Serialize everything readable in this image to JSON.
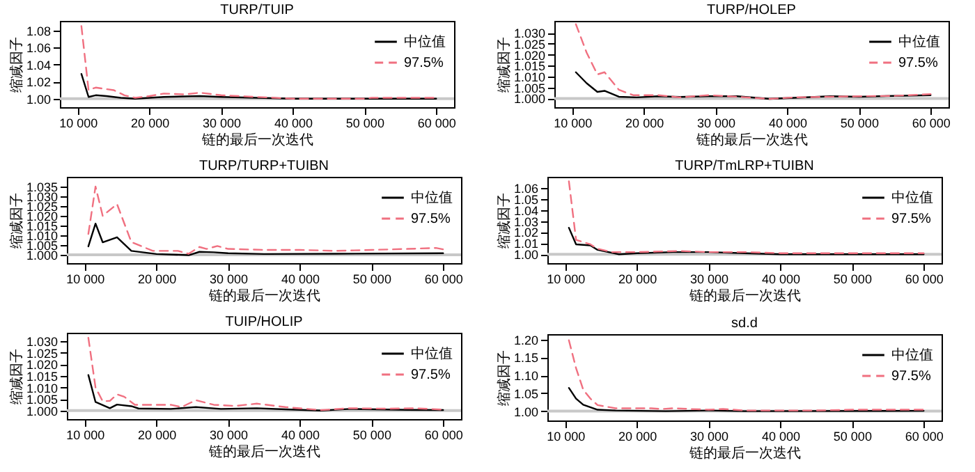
{
  "chart_data": [
    {
      "type": "line",
      "title": "TURP/TUIP",
      "xlabel": "链的最后一次迭代",
      "ylabel": "缩减因子",
      "legend": "top right",
      "xlim": [
        7500,
        62500
      ],
      "ylim": [
        0.99,
        1.091
      ],
      "xticks": [
        {
          "value": 10000,
          "label": "10 000"
        },
        {
          "value": 20000,
          "label": "20 000"
        },
        {
          "value": 30000,
          "label": "30 000"
        },
        {
          "value": 40000,
          "label": "40 000"
        },
        {
          "value": 50000,
          "label": "50 000"
        },
        {
          "value": 60000,
          "label": "60 000"
        }
      ],
      "yticks": [
        {
          "value": 1,
          "label": "1.00"
        },
        {
          "value": 1.02,
          "label": "1.02"
        },
        {
          "value": 1.04,
          "label": "1.04"
        },
        {
          "value": 1.06,
          "label": "1.06"
        },
        {
          "value": 1.08,
          "label": "1.08"
        }
      ],
      "ref_lines": [
        {
          "axis": "y",
          "value": 1,
          "color": "#c8c8c8"
        }
      ],
      "series": [
        {
          "name": "中位值",
          "color": "#000000",
          "line_style": "solid",
          "x": [
            10500,
            11500,
            12500,
            14000,
            16000,
            18000,
            22000,
            27000,
            30000,
            35000,
            40000,
            60000
          ],
          "values": [
            1.029,
            1.002,
            1.004,
            1.003,
            1.001,
            1.0,
            1.002,
            1.003,
            1.002,
            1.001,
            1.0,
            1.0
          ]
        },
        {
          "name": "97.5%",
          "color": "#f07080",
          "line_style": "dashed",
          "x": [
            10500,
            11500,
            12500,
            15000,
            16500,
            18000,
            20000,
            22000,
            25000,
            27000,
            30000,
            35000,
            40000,
            50000,
            51000,
            60000
          ],
          "values": [
            1.085,
            1.01,
            1.013,
            1.01,
            1.004,
            1.001,
            1.003,
            1.006,
            1.005,
            1.007,
            1.004,
            1.002,
            1.0,
            1.0,
            1.001,
            1.001
          ]
        }
      ]
    },
    {
      "type": "line",
      "title": "TURP/HOLEP",
      "xlabel": "链的最后一次迭代",
      "ylabel": "缩减因子",
      "legend": "top right",
      "xlim": [
        7500,
        62500
      ],
      "ylim": [
        0.996,
        1.0355
      ],
      "xticks": [
        {
          "value": 10000,
          "label": "10 000"
        },
        {
          "value": 20000,
          "label": "20 000"
        },
        {
          "value": 30000,
          "label": "30 000"
        },
        {
          "value": 40000,
          "label": "40 000"
        },
        {
          "value": 50000,
          "label": "50 000"
        },
        {
          "value": 60000,
          "label": "60 000"
        }
      ],
      "yticks": [
        {
          "value": 1,
          "label": "1.000"
        },
        {
          "value": 1.005,
          "label": "1.005"
        },
        {
          "value": 1.01,
          "label": "1.010"
        },
        {
          "value": 1.015,
          "label": "1.015"
        },
        {
          "value": 1.02,
          "label": "1.020"
        },
        {
          "value": 1.025,
          "label": "1.025"
        },
        {
          "value": 1.03,
          "label": "1.030"
        }
      ],
      "ref_lines": [
        {
          "axis": "y",
          "value": 1,
          "color": "#c8c8c8"
        }
      ],
      "series": [
        {
          "name": "中位值",
          "color": "#000000",
          "line_style": "solid",
          "x": [
            10500,
            12000,
            13500,
            14500,
            16500,
            19000,
            22000,
            25000,
            29000,
            33000,
            37500,
            41000,
            46000,
            50000,
            55000,
            60000
          ],
          "values": [
            1.012,
            1.007,
            1.003,
            1.0035,
            1.0008,
            1.0005,
            1.001,
            1.0007,
            1.001,
            1.001,
            0.9998,
            1.0003,
            1.001,
            1.0008,
            1.0012,
            1.0015
          ]
        },
        {
          "name": "97.5%",
          "color": "#f07080",
          "line_style": "dashed",
          "x": [
            10500,
            12000,
            13500,
            14500,
            16500,
            18500,
            22000,
            25000,
            29000,
            33000,
            37500,
            41000,
            46000,
            50000,
            55000,
            60000
          ],
          "values": [
            1.034,
            1.021,
            1.011,
            1.012,
            1.004,
            1.0015,
            1.0015,
            1.0005,
            1.0015,
            1.0008,
            0.9998,
            1.0005,
            1.0008,
            1.001,
            1.0012,
            1.002
          ]
        }
      ]
    },
    {
      "type": "line",
      "title": "TURP/TURP+TUIBN",
      "xlabel": "链的最后一次迭代",
      "ylabel": "缩减因子",
      "legend": "top right",
      "xlim": [
        7500,
        62500
      ],
      "ylim": [
        0.9957,
        1.04
      ],
      "xticks": [
        {
          "value": 10000,
          "label": "10 000"
        },
        {
          "value": 20000,
          "label": "20 000"
        },
        {
          "value": 30000,
          "label": "30 000"
        },
        {
          "value": 40000,
          "label": "40 000"
        },
        {
          "value": 50000,
          "label": "50 000"
        },
        {
          "value": 60000,
          "label": "60 000"
        }
      ],
      "yticks": [
        {
          "value": 1,
          "label": "1.000"
        },
        {
          "value": 1.005,
          "label": "1.005"
        },
        {
          "value": 1.01,
          "label": "1.010"
        },
        {
          "value": 1.015,
          "label": "1.015"
        },
        {
          "value": 1.02,
          "label": "1.020"
        },
        {
          "value": 1.025,
          "label": "1.025"
        },
        {
          "value": 1.03,
          "label": "1.030"
        },
        {
          "value": 1.035,
          "label": "1.035"
        }
      ],
      "ref_lines": [
        {
          "axis": "y",
          "value": 1,
          "color": "#c8c8c8"
        }
      ],
      "series": [
        {
          "name": "中位值",
          "color": "#000000",
          "line_style": "solid",
          "x": [
            10500,
            11500,
            12500,
            14500,
            16500,
            20000,
            24500,
            26000,
            28000,
            30000,
            35000,
            45000,
            60000
          ],
          "values": [
            1.0043,
            1.016,
            1.0064,
            1.009,
            1.002,
            1.0004,
            0.9998,
            1.0015,
            1.0013,
            1.0008,
            1.0004,
            1.0005,
            1.0008
          ]
        },
        {
          "name": "97.5%",
          "color": "#f07080",
          "line_style": "dashed",
          "x": [
            10500,
            11500,
            12500,
            14500,
            16500,
            19500,
            23000,
            24500,
            26000,
            27000,
            28500,
            30000,
            35000,
            40000,
            45000,
            50000,
            55000,
            59000,
            60000
          ],
          "values": [
            1.0107,
            1.035,
            1.02,
            1.026,
            1.0065,
            1.002,
            1.002,
            1.0005,
            1.004,
            1.003,
            1.0045,
            1.003,
            1.0025,
            1.0025,
            1.002,
            1.0025,
            1.003,
            1.0035,
            1.0028
          ]
        }
      ]
    },
    {
      "type": "line",
      "title": "TURP/TmLRP+TUIBN",
      "xlabel": "链的最后一次迭代",
      "ylabel": "缩减因子",
      "legend": "top right",
      "xlim": [
        7500,
        62500
      ],
      "ylim": [
        0.992,
        1.07
      ],
      "xticks": [
        {
          "value": 10000,
          "label": "10 000"
        },
        {
          "value": 20000,
          "label": "20 000"
        },
        {
          "value": 30000,
          "label": "30 000"
        },
        {
          "value": 40000,
          "label": "40 000"
        },
        {
          "value": 50000,
          "label": "50 000"
        },
        {
          "value": 60000,
          "label": "60 000"
        }
      ],
      "yticks": [
        {
          "value": 1,
          "label": "1.00"
        },
        {
          "value": 1.01,
          "label": "1.01"
        },
        {
          "value": 1.02,
          "label": "1.02"
        },
        {
          "value": 1.03,
          "label": "1.03"
        },
        {
          "value": 1.04,
          "label": "1.04"
        },
        {
          "value": 1.05,
          "label": "1.05"
        },
        {
          "value": 1.06,
          "label": "1.06"
        }
      ],
      "ref_lines": [
        {
          "axis": "y",
          "value": 1,
          "color": "#c8c8c8"
        }
      ],
      "series": [
        {
          "name": "中位值",
          "color": "#000000",
          "line_style": "solid",
          "x": [
            10500,
            11500,
            13500,
            14500,
            17500,
            20000,
            25000,
            30000,
            35000,
            40000,
            60000
          ],
          "values": [
            1.024,
            1.009,
            1.008,
            1.004,
            1.0,
            1.001,
            1.002,
            1.002,
            1.001,
            1.0,
            1.0
          ]
        },
        {
          "name": "97.5%",
          "color": "#f07080",
          "line_style": "dashed",
          "x": [
            10500,
            11500,
            13500,
            14500,
            16500,
            20000,
            26000,
            30000,
            35000,
            40000,
            50000,
            60000
          ],
          "values": [
            1.066,
            1.013,
            1.009,
            1.005,
            1.002,
            1.002,
            1.003,
            1.002,
            1.002,
            1.001,
            1.001,
            1.001
          ]
        }
      ]
    },
    {
      "type": "line",
      "title": "TUIP/HOLIP",
      "xlabel": "链的最后一次迭代",
      "ylabel": "缩减因子",
      "legend": "top right",
      "xlim": [
        7500,
        62500
      ],
      "ylim": [
        0.9963,
        1.0337
      ],
      "xticks": [
        {
          "value": 10000,
          "label": "10 000"
        },
        {
          "value": 20000,
          "label": "20 000"
        },
        {
          "value": 30000,
          "label": "30 000"
        },
        {
          "value": 40000,
          "label": "40 000"
        },
        {
          "value": 50000,
          "label": "50 000"
        },
        {
          "value": 60000,
          "label": "60 000"
        }
      ],
      "yticks": [
        {
          "value": 1,
          "label": "1.000"
        },
        {
          "value": 1.005,
          "label": "1.005"
        },
        {
          "value": 1.01,
          "label": "1.010"
        },
        {
          "value": 1.015,
          "label": "1.015"
        },
        {
          "value": 1.02,
          "label": "1.020"
        },
        {
          "value": 1.025,
          "label": "1.025"
        },
        {
          "value": 1.03,
          "label": "1.030"
        }
      ],
      "ref_lines": [
        {
          "axis": "y",
          "value": 1,
          "color": "#c8c8c8"
        }
      ],
      "series": [
        {
          "name": "中位值",
          "color": "#000000",
          "line_style": "solid",
          "x": [
            10500,
            11500,
            13500,
            14500,
            16500,
            17500,
            22000,
            25500,
            29000,
            34000,
            38000,
            43000,
            47000,
            55000,
            60000
          ],
          "values": [
            1.0154,
            1.0037,
            1.001,
            1.0026,
            1.0019,
            1.0009,
            1.0007,
            1.0015,
            1.0007,
            1.001,
            1.0005,
            1.0,
            1.0007,
            1.0003,
            1.0002
          ]
        },
        {
          "name": "97.5%",
          "color": "#f07080",
          "line_style": "dashed",
          "x": [
            10500,
            11500,
            12500,
            13500,
            14500,
            15500,
            17000,
            22000,
            23500,
            25500,
            28000,
            31000,
            34000,
            38000,
            43000,
            47000,
            52000,
            56000,
            60000
          ],
          "values": [
            1.0315,
            1.01,
            1.004,
            1.0042,
            1.007,
            1.006,
            1.0025,
            1.0025,
            1.0015,
            1.0045,
            1.0025,
            1.002,
            1.003,
            1.0015,
            1.0002,
            1.001,
            1.0008,
            1.001,
            1.0004
          ]
        }
      ]
    },
    {
      "type": "line",
      "title": "sd.d",
      "xlabel": "链的最后一次迭代",
      "ylabel": "缩减因子",
      "legend": "top right",
      "xlim": [
        7500,
        62500
      ],
      "ylim": [
        0.974,
        1.215
      ],
      "xticks": [
        {
          "value": 10000,
          "label": "10 000"
        },
        {
          "value": 20000,
          "label": "20 000"
        },
        {
          "value": 30000,
          "label": "30 000"
        },
        {
          "value": 40000,
          "label": "40 000"
        },
        {
          "value": 50000,
          "label": "50 000"
        },
        {
          "value": 60000,
          "label": "60 000"
        }
      ],
      "yticks": [
        {
          "value": 1,
          "label": "1.00"
        },
        {
          "value": 1.05,
          "label": "1.05"
        },
        {
          "value": 1.1,
          "label": "1.10"
        },
        {
          "value": 1.15,
          "label": "1.15"
        },
        {
          "value": 1.2,
          "label": "1.20"
        }
      ],
      "ref_lines": [
        {
          "axis": "y",
          "value": 1,
          "color": "#c8c8c8"
        }
      ],
      "series": [
        {
          "name": "中位值",
          "color": "#000000",
          "line_style": "solid",
          "x": [
            10500,
            11500,
            12500,
            14500,
            17000,
            24000,
            30000,
            35000,
            60000
          ],
          "values": [
            1.065,
            1.035,
            1.018,
            1.004,
            1.002,
            1.0,
            1.002,
            1.0,
            1.001
          ]
        },
        {
          "name": "97.5%",
          "color": "#f07080",
          "line_style": "dashed",
          "x": [
            10500,
            11500,
            12500,
            13500,
            14500,
            17000,
            22000,
            23500,
            25000,
            30000,
            32000,
            35000,
            45000,
            50000,
            60000
          ],
          "values": [
            1.198,
            1.12,
            1.06,
            1.035,
            1.017,
            1.008,
            1.008,
            1.006,
            1.008,
            1.004,
            1.006,
            1.002,
            1.002,
            1.004,
            1.004
          ]
        }
      ]
    }
  ]
}
